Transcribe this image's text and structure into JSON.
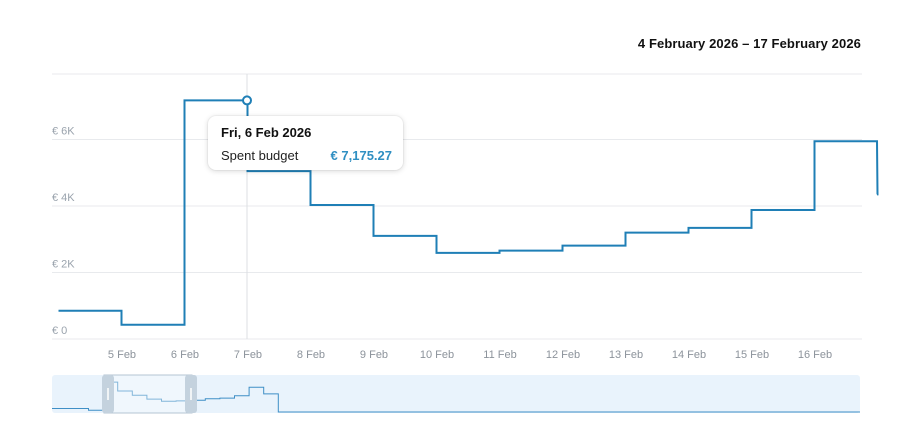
{
  "header": {
    "date_range": "4 February 2026 – 17 February 2026"
  },
  "tooltip": {
    "date": "Fri, 6 Feb 2026",
    "label": "Spent budget",
    "value": "€ 7,175.27"
  },
  "colors": {
    "line": "#1f7fb6",
    "grid": "#e8eaed",
    "navigator_bg": "#e9f3fc",
    "navigator_handle": "#c4d2de"
  },
  "chart_data": {
    "type": "line",
    "step": true,
    "title": "",
    "xlabel": "",
    "ylabel": "",
    "x_tick_labels": [
      "5 Feb",
      "6 Feb",
      "7 Feb",
      "8 Feb",
      "9 Feb",
      "10 Feb",
      "11 Feb",
      "12 Feb",
      "13 Feb",
      "14 Feb",
      "15 Feb",
      "16 Feb"
    ],
    "y_tick_labels": [
      "€ 0",
      "€ 2K",
      "€ 4K",
      "€ 6K"
    ],
    "ylim": [
      0,
      8000
    ],
    "grid": true,
    "series": [
      {
        "values": [
          {
            "x": "2026-02-04",
            "y": 850
          },
          {
            "x": "2026-02-05",
            "y": 430
          },
          {
            "x": "2026-02-06",
            "y": 7175.27
          },
          {
            "x": "2026-02-07",
            "y": 5050
          },
          {
            "x": "2026-02-08",
            "y": 4030
          },
          {
            "x": "2026-02-09",
            "y": 3100
          },
          {
            "x": "2026-02-10",
            "y": 2590
          },
          {
            "x": "2026-02-11",
            "y": 2660
          },
          {
            "x": "2026-02-12",
            "y": 2810
          },
          {
            "x": "2026-02-13",
            "y": 3200
          },
          {
            "x": "2026-02-14",
            "y": 3340
          },
          {
            "x": "2026-02-15",
            "y": 3880
          },
          {
            "x": "2026-02-16",
            "y": 5950
          },
          {
            "x": "2026-02-17",
            "y": 4350
          }
        ]
      }
    ],
    "highlight": {
      "x": "2026-02-06",
      "y": 7175.27
    }
  }
}
